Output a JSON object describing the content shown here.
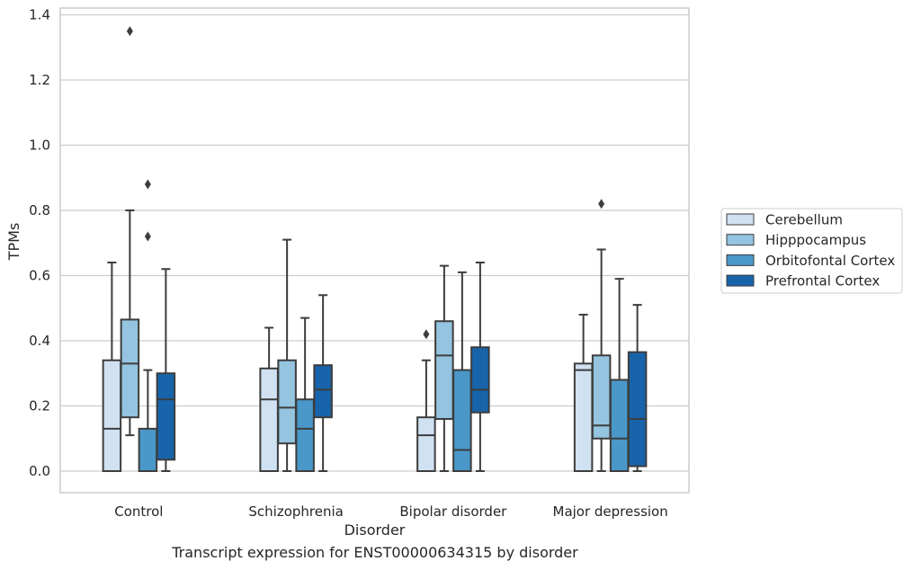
{
  "caption": "Transcript expression for ENST00000634315 by disorder",
  "chart_data": {
    "type": "box",
    "xlabel": "Disorder",
    "ylabel": "TPMs",
    "ylim": [
      -0.065,
      1.42
    ],
    "yticks": [
      "0.0",
      "0.2",
      "0.4",
      "0.6",
      "0.8",
      "1.0",
      "1.2",
      "1.4"
    ],
    "grid": "horizontal",
    "legend_position": "right",
    "categories": [
      "Control",
      "Schizophrenia",
      "Bipolar disorder",
      "Major depression"
    ],
    "series": [
      {
        "name": "Cerebellum",
        "color": "#d0e1f2",
        "boxes": [
          {
            "q1": 0.0,
            "median": 0.13,
            "q3": 0.34,
            "whisker_low": 0.0,
            "whisker_high": 0.64,
            "outliers": []
          },
          {
            "q1": 0.0,
            "median": 0.22,
            "q3": 0.315,
            "whisker_low": 0.0,
            "whisker_high": 0.44,
            "outliers": []
          },
          {
            "q1": 0.0,
            "median": 0.11,
            "q3": 0.165,
            "whisker_low": 0.0,
            "whisker_high": 0.34,
            "outliers": [
              0.42
            ]
          },
          {
            "q1": 0.0,
            "median": 0.31,
            "q3": 0.33,
            "whisker_low": 0.0,
            "whisker_high": 0.48,
            "outliers": []
          }
        ]
      },
      {
        "name": "Hipppocampus",
        "color": "#94c4df",
        "boxes": [
          {
            "q1": 0.165,
            "median": 0.33,
            "q3": 0.465,
            "whisker_low": 0.11,
            "whisker_high": 0.8,
            "outliers": [
              1.35
            ]
          },
          {
            "q1": 0.085,
            "median": 0.195,
            "q3": 0.34,
            "whisker_low": 0.0,
            "whisker_high": 0.71,
            "outliers": []
          },
          {
            "q1": 0.16,
            "median": 0.355,
            "q3": 0.46,
            "whisker_low": 0.0,
            "whisker_high": 0.63,
            "outliers": []
          },
          {
            "q1": 0.1,
            "median": 0.14,
            "q3": 0.355,
            "whisker_low": 0.0,
            "whisker_high": 0.68,
            "outliers": [
              0.82
            ]
          }
        ]
      },
      {
        "name": "Orbitofontal Cortex",
        "color": "#4a98c9",
        "boxes": [
          {
            "q1": 0.0,
            "median": 0.0,
            "q3": 0.13,
            "whisker_low": 0.0,
            "whisker_high": 0.31,
            "outliers": [
              0.72,
              0.88
            ]
          },
          {
            "q1": 0.0,
            "median": 0.13,
            "q3": 0.22,
            "whisker_low": 0.0,
            "whisker_high": 0.47,
            "outliers": []
          },
          {
            "q1": 0.0,
            "median": 0.065,
            "q3": 0.31,
            "whisker_low": 0.0,
            "whisker_high": 0.61,
            "outliers": []
          },
          {
            "q1": 0.0,
            "median": 0.1,
            "q3": 0.28,
            "whisker_low": 0.0,
            "whisker_high": 0.59,
            "outliers": []
          }
        ]
      },
      {
        "name": "Prefrontal Cortex",
        "color": "#1764ab",
        "boxes": [
          {
            "q1": 0.035,
            "median": 0.22,
            "q3": 0.3,
            "whisker_low": 0.0,
            "whisker_high": 0.62,
            "outliers": []
          },
          {
            "q1": 0.165,
            "median": 0.25,
            "q3": 0.325,
            "whisker_low": 0.0,
            "whisker_high": 0.54,
            "outliers": []
          },
          {
            "q1": 0.18,
            "median": 0.25,
            "q3": 0.38,
            "whisker_low": 0.0,
            "whisker_high": 0.64,
            "outliers": []
          },
          {
            "q1": 0.015,
            "median": 0.16,
            "q3": 0.365,
            "whisker_low": 0.0,
            "whisker_high": 0.51,
            "outliers": []
          }
        ]
      }
    ],
    "colors": {
      "grid": "#cccccc",
      "frame": "#cccccc",
      "box_edge": "#3d3d3d",
      "text": "#262626"
    }
  }
}
